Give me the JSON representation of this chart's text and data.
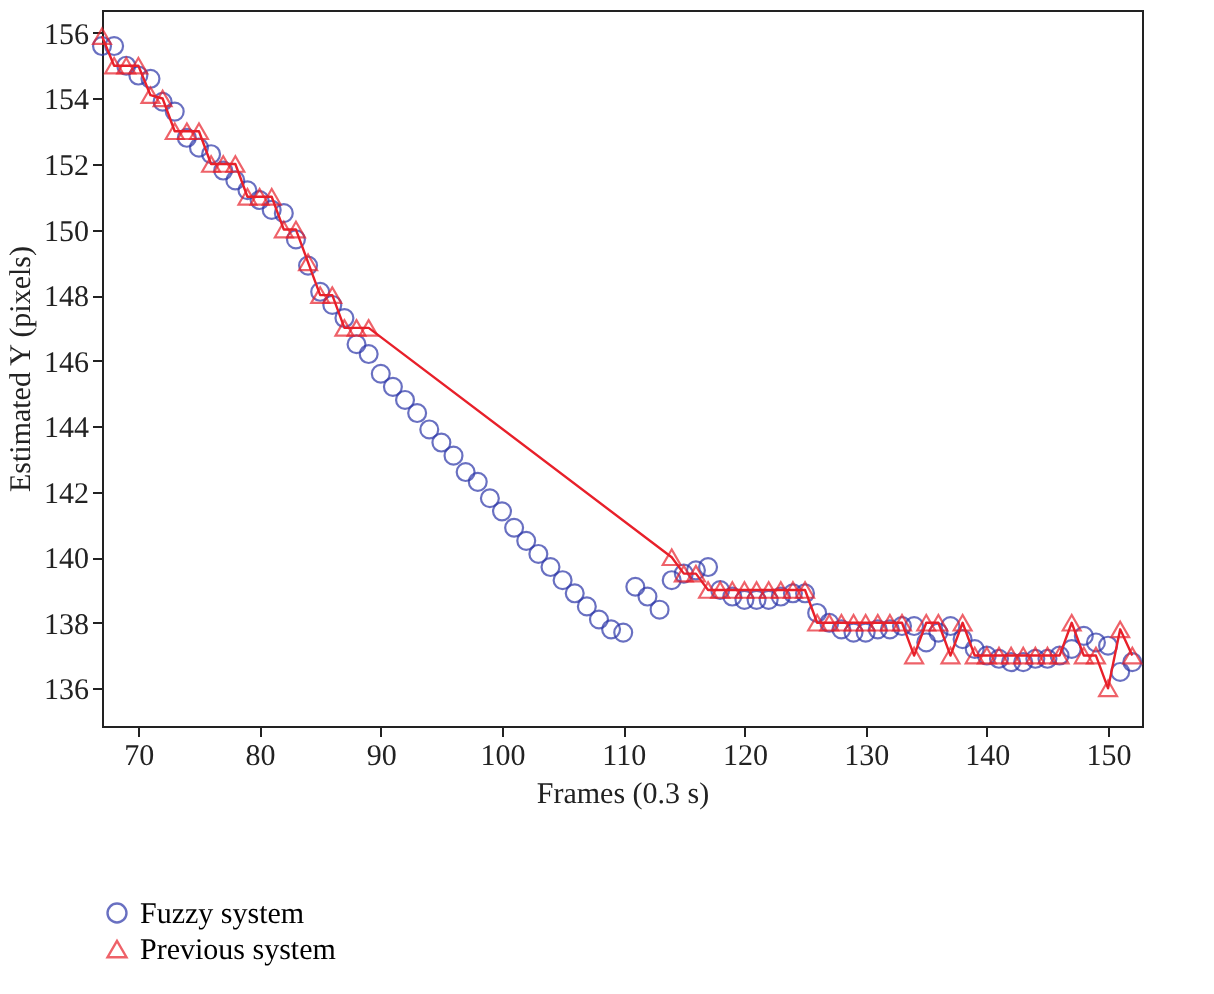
{
  "chart_data": {
    "type": "scatter",
    "xlabel": "Frames (0.3 s)",
    "ylabel": "Estimated Y (pixels)",
    "xlim": [
      67,
      152.8
    ],
    "ylim": [
      134.85,
      156.7
    ],
    "xticks": [
      70,
      80,
      90,
      100,
      110,
      120,
      130,
      140,
      150
    ],
    "yticks": [
      136,
      138,
      140,
      142,
      144,
      146,
      148,
      150,
      152,
      154,
      156
    ],
    "grid": false,
    "legend": "bottom",
    "series": [
      {
        "name": "Fuzzy system",
        "marker": "circle",
        "color": "#2b35a8",
        "x": [
          67,
          68,
          69,
          70,
          71,
          72,
          73,
          74,
          75,
          76,
          77,
          78,
          79,
          80,
          81,
          82,
          83,
          84,
          85,
          86,
          87,
          88,
          89,
          90,
          91,
          92,
          93,
          94,
          95,
          96,
          97,
          98,
          99,
          100,
          101,
          102,
          103,
          104,
          105,
          106,
          107,
          108,
          109,
          110,
          111,
          112,
          113,
          114,
          115,
          116,
          117,
          118,
          119,
          120,
          121,
          122,
          123,
          124,
          125,
          126,
          127,
          128,
          129,
          130,
          131,
          132,
          133,
          134,
          135,
          136,
          137,
          138,
          139,
          140,
          141,
          142,
          143,
          144,
          145,
          146,
          147,
          148,
          149,
          150,
          151,
          152
        ],
        "values": [
          155.6,
          155.6,
          155.0,
          154.7,
          154.6,
          153.9,
          153.6,
          152.8,
          152.5,
          152.3,
          151.8,
          151.5,
          151.2,
          150.9,
          150.6,
          150.5,
          149.7,
          148.9,
          148.1,
          147.7,
          147.3,
          146.5,
          146.2,
          145.6,
          145.2,
          144.8,
          144.4,
          143.9,
          143.5,
          143.1,
          142.6,
          142.3,
          141.8,
          141.4,
          140.9,
          140.5,
          140.1,
          139.7,
          139.3,
          138.9,
          138.5,
          138.1,
          137.8,
          137.7,
          139.1,
          138.8,
          138.4,
          139.3,
          139.5,
          139.6,
          139.7,
          139.0,
          138.8,
          138.7,
          138.7,
          138.7,
          138.8,
          138.9,
          138.9,
          138.3,
          138.0,
          137.8,
          137.7,
          137.7,
          137.8,
          137.8,
          137.9,
          137.9,
          137.4,
          137.7,
          137.9,
          137.5,
          137.2,
          137.0,
          136.9,
          136.8,
          136.8,
          136.9,
          136.9,
          137.0,
          137.2,
          137.6,
          137.4,
          137.3,
          136.5,
          136.8
        ]
      },
      {
        "name": "Previous system",
        "type": "line",
        "marker": "triangle",
        "color": "#e8202a",
        "x": [
          67,
          68,
          69,
          70,
          71,
          72,
          73,
          74,
          75,
          76,
          77,
          78,
          79,
          80,
          81,
          82,
          83,
          84,
          85,
          86,
          87,
          88,
          89,
          114,
          115,
          116,
          117,
          118,
          119,
          120,
          121,
          122,
          123,
          124,
          125,
          126,
          127,
          128,
          129,
          130,
          131,
          132,
          133,
          134,
          135,
          136,
          137,
          138,
          139,
          140,
          141,
          142,
          143,
          144,
          145,
          146,
          147,
          148,
          149,
          150,
          151,
          152
        ],
        "values": [
          155.9,
          155.0,
          155.0,
          155.0,
          154.1,
          154.0,
          153.0,
          153.0,
          153.0,
          152.0,
          152.0,
          152.0,
          151.0,
          151.0,
          151.0,
          150.0,
          150.0,
          149.0,
          148.0,
          148.0,
          147.0,
          147.0,
          147.0,
          140.0,
          139.5,
          139.5,
          139.0,
          139.0,
          139.0,
          139.0,
          139.0,
          139.0,
          139.0,
          139.0,
          139.0,
          138.0,
          138.0,
          138.0,
          138.0,
          138.0,
          138.0,
          138.0,
          138.0,
          137.0,
          138.0,
          138.0,
          137.0,
          138.0,
          137.0,
          137.0,
          137.0,
          137.0,
          137.0,
          137.0,
          137.0,
          137.0,
          138.0,
          137.0,
          137.0,
          136.0,
          137.8,
          137.0
        ]
      }
    ]
  }
}
